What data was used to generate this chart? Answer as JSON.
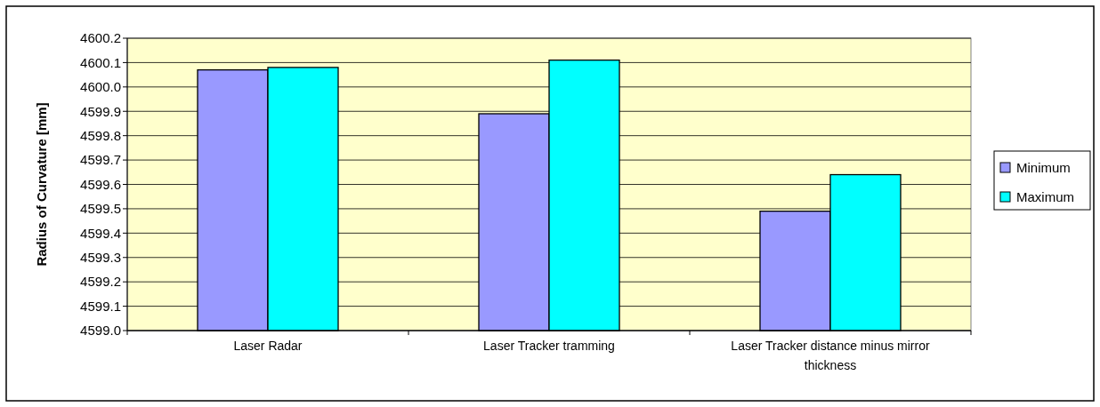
{
  "chart_data": {
    "type": "bar",
    "ylabel": "Radius of Curvature [mm]",
    "categories": [
      "Laser Radar",
      "Laser Tracker tramming",
      "Laser Tracker distance minus mirror thickness"
    ],
    "series": [
      {
        "name": "Minimum",
        "color": "#9999ff",
        "values": [
          4600.07,
          4599.89,
          4599.49
        ]
      },
      {
        "name": "Maximum",
        "color": "#00ffff",
        "values": [
          4600.08,
          4600.11,
          4599.64
        ]
      }
    ],
    "ylim": [
      4599.0,
      4600.2
    ],
    "yticks": [
      {
        "value": 4599.0,
        "label": "4599.0"
      },
      4599.1,
      4599.2,
      4599.3,
      4599.4,
      4599.5,
      4599.6,
      4599.7,
      4599.8,
      4599.9,
      {
        "value": 4600.0,
        "label": "4600.0"
      },
      4600.1,
      4600.2
    ],
    "grid": "y",
    "legend": "right"
  }
}
